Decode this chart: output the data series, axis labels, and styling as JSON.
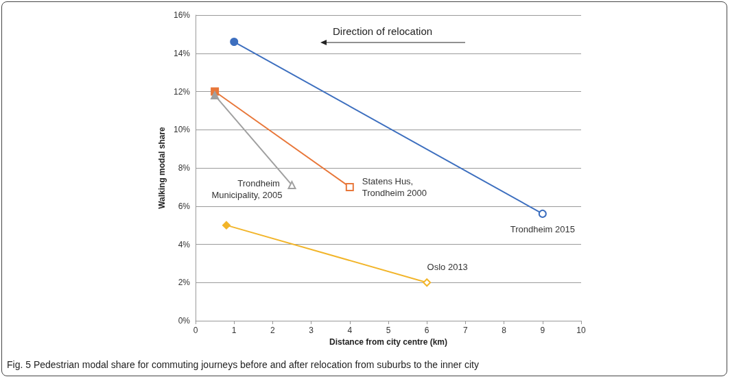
{
  "chart_data": {
    "type": "line",
    "xlabel": "Distance from city centre (km)",
    "ylabel": "Walking modal share",
    "xlim": [
      0,
      10
    ],
    "xticks": [
      0,
      1,
      2,
      3,
      4,
      5,
      6,
      7,
      8,
      9,
      10
    ],
    "ylim": [
      0,
      16
    ],
    "yticks": [
      {
        "value": 0,
        "label": "0%"
      },
      {
        "value": 2,
        "label": "2%"
      },
      {
        "value": 4,
        "label": "4%"
      },
      {
        "value": 6,
        "label": "6%"
      },
      {
        "value": 8,
        "label": "8%"
      },
      {
        "value": 10,
        "label": "10%"
      },
      {
        "value": 12,
        "label": "12%"
      },
      {
        "value": 14,
        "label": "14%"
      },
      {
        "value": 16,
        "label": "16%"
      }
    ],
    "grid": "y",
    "legend": false,
    "series": [
      {
        "name": "Trondheim 2015",
        "color": "#3d6fbf",
        "marker": "circle",
        "x": [
          1,
          9
        ],
        "values": [
          14.6,
          5.6
        ]
      },
      {
        "name": "Statens Hus, Trondheim 2000",
        "color": "#e8773a",
        "marker": "square",
        "x": [
          0.5,
          4
        ],
        "values": [
          12,
          7
        ]
      },
      {
        "name": "Trondheim Municipality, 2005",
        "color": "#a0a0a0",
        "marker": "triangle",
        "x": [
          0.5,
          2.5
        ],
        "values": [
          11.8,
          7.1
        ]
      },
      {
        "name": "Oslo 2013",
        "color": "#f2b52a",
        "marker": "diamond",
        "x": [
          0.8,
          6
        ],
        "values": [
          5,
          2
        ]
      }
    ],
    "annotations": [
      "Direction of relocation",
      "Fig. 5 Pedestrian modal share for commuting journeys before and after relocation from suburbs to the inner city"
    ]
  }
}
